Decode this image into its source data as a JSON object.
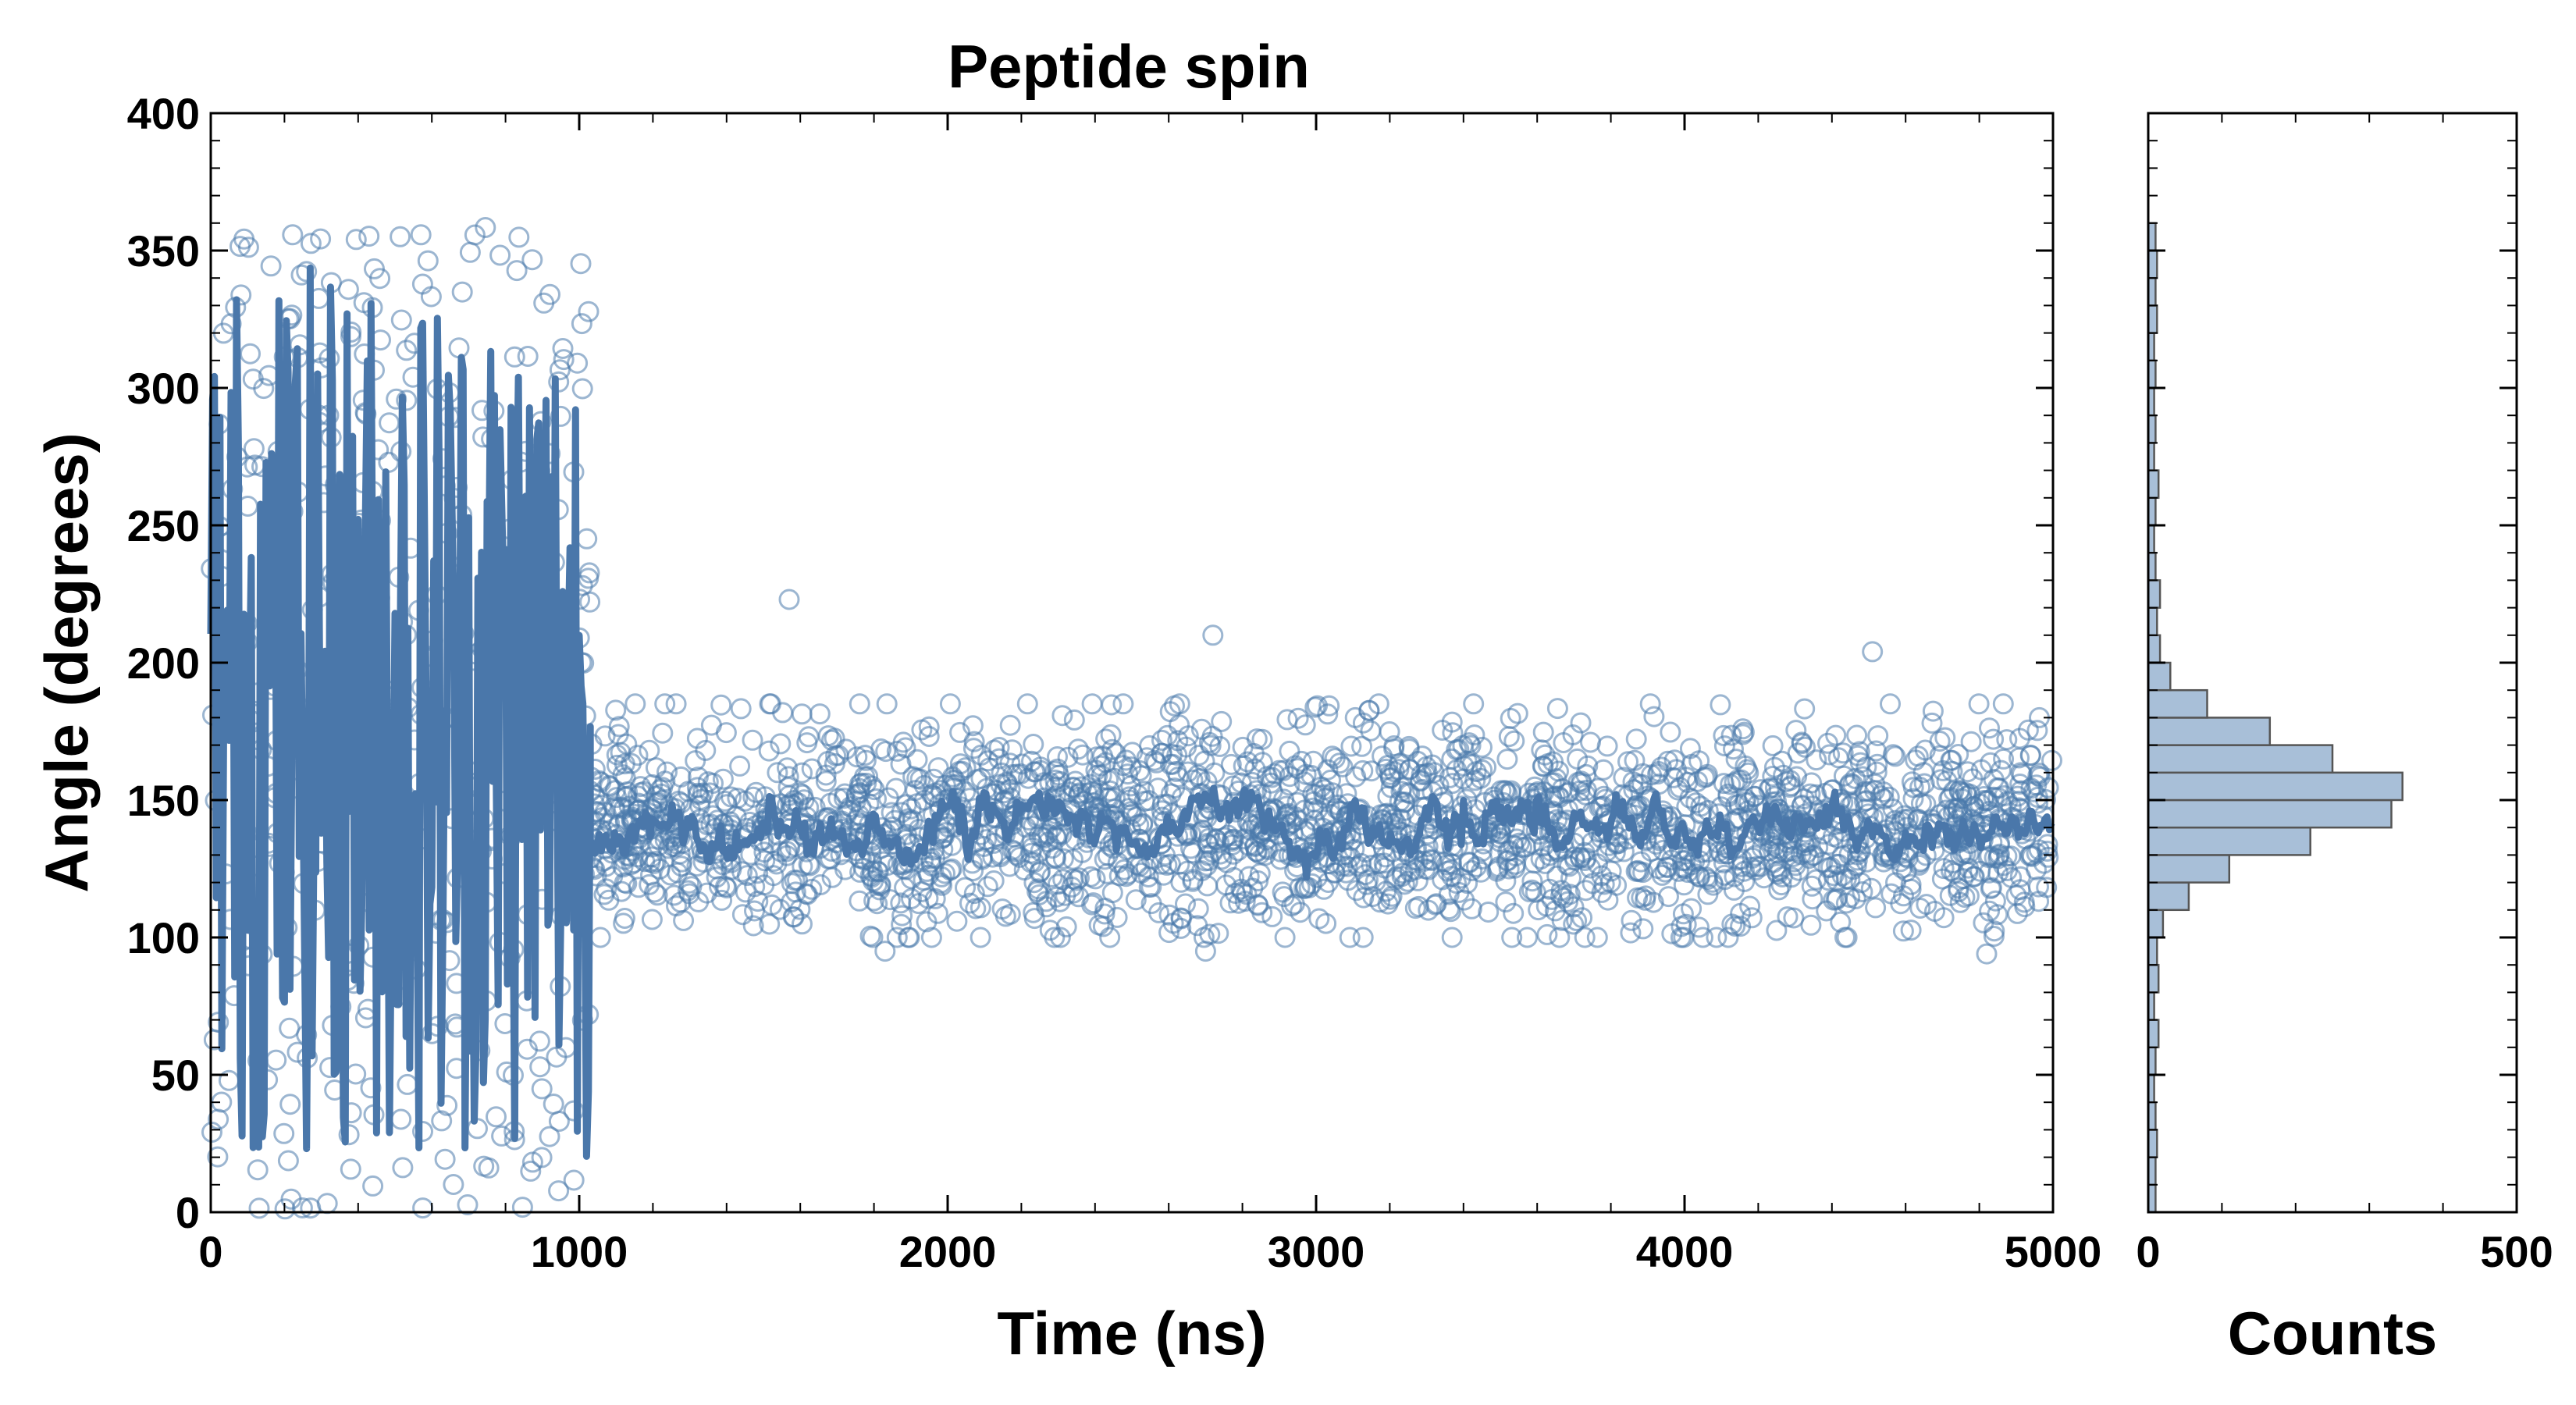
{
  "chart_data": {
    "type": "scatter",
    "title": "Peptide spin",
    "main_panel": {
      "xlabel": "Time (ns)",
      "ylabel": "Angle (degrees)",
      "xlim": [
        0,
        5000
      ],
      "ylim": [
        0,
        400
      ],
      "x_ticks": [
        0,
        1000,
        2000,
        3000,
        4000,
        5000
      ],
      "y_ticks": [
        0,
        50,
        100,
        150,
        200,
        250,
        300,
        350,
        400
      ],
      "grid": false,
      "series": [
        {
          "kind": "scatter-open-circles",
          "color": "#4a7aab",
          "opacity": 0.55,
          "description_x_range": [
            0,
            5000
          ],
          "early_phase": {
            "x_range": [
              0,
              1030
            ],
            "y_range": [
              0,
              360
            ]
          },
          "late_phase": {
            "x_range": [
              1030,
              5000
            ],
            "mean": 140,
            "spread": 20
          }
        },
        {
          "kind": "line-running-average",
          "color": "#4a77aa",
          "early_phase": {
            "x_range": [
              0,
              1030
            ],
            "y_range": [
              20,
              345
            ]
          },
          "late_phase": {
            "x_range": [
              1030,
              5000
            ],
            "mean": 140,
            "spread": 8
          }
        }
      ],
      "annotated_points": [
        {
          "x": 1570,
          "y": 223
        },
        {
          "x": 2720,
          "y": 210
        },
        {
          "x": 4510,
          "y": 204
        },
        {
          "x": 1830,
          "y": 95
        },
        {
          "x": 2700,
          "y": 95
        },
        {
          "x": 4820,
          "y": 94
        }
      ]
    },
    "histogram_panel": {
      "xlabel": "Counts",
      "xlim": [
        0,
        500
      ],
      "x_ticks": [
        0,
        500
      ],
      "ylim": [
        0,
        400
      ],
      "bin_width": 10,
      "color": "#a8bfd8",
      "edge_color": "#555555",
      "bins": [
        {
          "y0": 0,
          "count": 10
        },
        {
          "y0": 10,
          "count": 10
        },
        {
          "y0": 20,
          "count": 12
        },
        {
          "y0": 30,
          "count": 10
        },
        {
          "y0": 40,
          "count": 8
        },
        {
          "y0": 50,
          "count": 10
        },
        {
          "y0": 60,
          "count": 14
        },
        {
          "y0": 70,
          "count": 8
        },
        {
          "y0": 80,
          "count": 14
        },
        {
          "y0": 90,
          "count": 12
        },
        {
          "y0": 100,
          "count": 20
        },
        {
          "y0": 110,
          "count": 55
        },
        {
          "y0": 120,
          "count": 110
        },
        {
          "y0": 130,
          "count": 220
        },
        {
          "y0": 140,
          "count": 330
        },
        {
          "y0": 150,
          "count": 345
        },
        {
          "y0": 160,
          "count": 250
        },
        {
          "y0": 170,
          "count": 165
        },
        {
          "y0": 180,
          "count": 80
        },
        {
          "y0": 190,
          "count": 30
        },
        {
          "y0": 200,
          "count": 16
        },
        {
          "y0": 210,
          "count": 12
        },
        {
          "y0": 220,
          "count": 16
        },
        {
          "y0": 230,
          "count": 10
        },
        {
          "y0": 240,
          "count": 8
        },
        {
          "y0": 250,
          "count": 10
        },
        {
          "y0": 260,
          "count": 14
        },
        {
          "y0": 270,
          "count": 8
        },
        {
          "y0": 280,
          "count": 10
        },
        {
          "y0": 290,
          "count": 8
        },
        {
          "y0": 300,
          "count": 10
        },
        {
          "y0": 310,
          "count": 8
        },
        {
          "y0": 320,
          "count": 12
        },
        {
          "y0": 330,
          "count": 10
        },
        {
          "y0": 340,
          "count": 12
        },
        {
          "y0": 350,
          "count": 10
        }
      ]
    }
  }
}
